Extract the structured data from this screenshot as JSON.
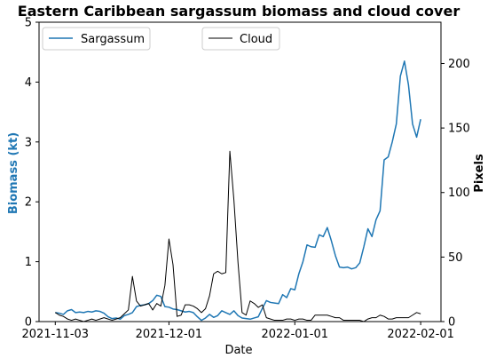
{
  "chart_data": {
    "type": "line",
    "title": "Eastern Caribbean sargassum biomass and cloud cover",
    "xlabel": "Date",
    "ylabel_left": "Biomass (kt)",
    "ylabel_right": "Pixels",
    "xlim": [
      "2021-10-30",
      "2022-02-06"
    ],
    "ylim_left": [
      0,
      5
    ],
    "ylim_right": [
      0,
      232
    ],
    "x_ticks": [
      {
        "date": "2021-11-03",
        "label": "2021-11-03"
      },
      {
        "date": "2021-12-01",
        "label": "2021-12-01"
      },
      {
        "date": "2022-01-01",
        "label": "2022-01-01"
      },
      {
        "date": "2022-02-01",
        "label": "2022-02-01"
      }
    ],
    "y_ticks_left": [
      0,
      1,
      2,
      3,
      4,
      5
    ],
    "y_ticks_right": [
      0,
      50,
      100,
      150,
      200
    ],
    "legend_placement": "top",
    "series": [
      {
        "name": "Sargassum",
        "axis": "left",
        "color": "#1f77b4",
        "points": [
          [
            "2021-11-03",
            0.15
          ],
          [
            "2021-11-04",
            0.14
          ],
          [
            "2021-11-05",
            0.12
          ],
          [
            "2021-11-06",
            0.18
          ],
          [
            "2021-11-07",
            0.2
          ],
          [
            "2021-11-08",
            0.15
          ],
          [
            "2021-11-09",
            0.16
          ],
          [
            "2021-11-10",
            0.15
          ],
          [
            "2021-11-11",
            0.17
          ],
          [
            "2021-11-12",
            0.16
          ],
          [
            "2021-11-13",
            0.18
          ],
          [
            "2021-11-14",
            0.17
          ],
          [
            "2021-11-15",
            0.14
          ],
          [
            "2021-11-16",
            0.08
          ],
          [
            "2021-11-17",
            0.05
          ],
          [
            "2021-11-18",
            0.06
          ],
          [
            "2021-11-19",
            0.04
          ],
          [
            "2021-11-20",
            0.1
          ],
          [
            "2021-11-21",
            0.12
          ],
          [
            "2021-11-22",
            0.15
          ],
          [
            "2021-11-23",
            0.25
          ],
          [
            "2021-11-24",
            0.27
          ],
          [
            "2021-11-25",
            0.28
          ],
          [
            "2021-11-26",
            0.3
          ],
          [
            "2021-11-27",
            0.35
          ],
          [
            "2021-11-28",
            0.44
          ],
          [
            "2021-11-29",
            0.42
          ],
          [
            "2021-11-30",
            0.25
          ],
          [
            "2021-12-01",
            0.24
          ],
          [
            "2021-12-02",
            0.21
          ],
          [
            "2021-12-03",
            0.2
          ],
          [
            "2021-12-04",
            0.18
          ],
          [
            "2021-12-05",
            0.16
          ],
          [
            "2021-12-06",
            0.17
          ],
          [
            "2021-12-07",
            0.15
          ],
          [
            "2021-12-08",
            0.08
          ],
          [
            "2021-12-09",
            0.02
          ],
          [
            "2021-12-10",
            0.06
          ],
          [
            "2021-12-11",
            0.12
          ],
          [
            "2021-12-12",
            0.07
          ],
          [
            "2021-12-13",
            0.1
          ],
          [
            "2021-12-14",
            0.18
          ],
          [
            "2021-12-15",
            0.15
          ],
          [
            "2021-12-16",
            0.12
          ],
          [
            "2021-12-17",
            0.18
          ],
          [
            "2021-12-18",
            0.1
          ],
          [
            "2021-12-19",
            0.06
          ],
          [
            "2021-12-20",
            0.05
          ],
          [
            "2021-12-21",
            0.04
          ],
          [
            "2021-12-22",
            0.06
          ],
          [
            "2021-12-23",
            0.08
          ],
          [
            "2021-12-24",
            0.22
          ],
          [
            "2021-12-25",
            0.35
          ],
          [
            "2021-12-26",
            0.32
          ],
          [
            "2021-12-27",
            0.31
          ],
          [
            "2021-12-28",
            0.3
          ],
          [
            "2021-12-29",
            0.45
          ],
          [
            "2021-12-30",
            0.4
          ],
          [
            "2021-12-31",
            0.55
          ],
          [
            "2022-01-01",
            0.53
          ],
          [
            "2022-01-02",
            0.8
          ],
          [
            "2022-01-03",
            1.0
          ],
          [
            "2022-01-04",
            1.28
          ],
          [
            "2022-01-05",
            1.25
          ],
          [
            "2022-01-06",
            1.24
          ],
          [
            "2022-01-07",
            1.45
          ],
          [
            "2022-01-08",
            1.42
          ],
          [
            "2022-01-09",
            1.57
          ],
          [
            "2022-01-10",
            1.35
          ],
          [
            "2022-01-11",
            1.1
          ],
          [
            "2022-01-12",
            0.91
          ],
          [
            "2022-01-13",
            0.9
          ],
          [
            "2022-01-14",
            0.91
          ],
          [
            "2022-01-15",
            0.88
          ],
          [
            "2022-01-16",
            0.9
          ],
          [
            "2022-01-17",
            0.98
          ],
          [
            "2022-01-18",
            1.25
          ],
          [
            "2022-01-19",
            1.55
          ],
          [
            "2022-01-20",
            1.42
          ],
          [
            "2022-01-21",
            1.7
          ],
          [
            "2022-01-22",
            1.85
          ],
          [
            "2022-01-23",
            2.7
          ],
          [
            "2022-01-24",
            2.75
          ],
          [
            "2022-01-25",
            3.0
          ],
          [
            "2022-01-26",
            3.3
          ],
          [
            "2022-01-27",
            4.1
          ],
          [
            "2022-01-28",
            4.35
          ],
          [
            "2022-01-29",
            3.95
          ],
          [
            "2022-01-30",
            3.3
          ],
          [
            "2022-01-31",
            3.08
          ],
          [
            "2022-02-01",
            3.38
          ]
        ]
      },
      {
        "name": "Cloud",
        "axis": "right",
        "color": "#000000",
        "points": [
          [
            "2021-11-03",
            7
          ],
          [
            "2021-11-04",
            5
          ],
          [
            "2021-11-05",
            4
          ],
          [
            "2021-11-06",
            2
          ],
          [
            "2021-11-07",
            1
          ],
          [
            "2021-11-08",
            2
          ],
          [
            "2021-11-09",
            1
          ],
          [
            "2021-11-10",
            0
          ],
          [
            "2021-11-11",
            1
          ],
          [
            "2021-11-12",
            2
          ],
          [
            "2021-11-13",
            1
          ],
          [
            "2021-11-14",
            2
          ],
          [
            "2021-11-15",
            3
          ],
          [
            "2021-11-16",
            2
          ],
          [
            "2021-11-17",
            1
          ],
          [
            "2021-11-18",
            2
          ],
          [
            "2021-11-19",
            3
          ],
          [
            "2021-11-20",
            6
          ],
          [
            "2021-11-21",
            9
          ],
          [
            "2021-11-22",
            35
          ],
          [
            "2021-11-23",
            16
          ],
          [
            "2021-11-24",
            12
          ],
          [
            "2021-11-25",
            13
          ],
          [
            "2021-11-26",
            14
          ],
          [
            "2021-11-27",
            9
          ],
          [
            "2021-11-28",
            14
          ],
          [
            "2021-11-29",
            12
          ],
          [
            "2021-11-30",
            28
          ],
          [
            "2021-12-01",
            64
          ],
          [
            "2021-12-02",
            44
          ],
          [
            "2021-12-03",
            4
          ],
          [
            "2021-12-04",
            5
          ],
          [
            "2021-12-05",
            13
          ],
          [
            "2021-12-06",
            13
          ],
          [
            "2021-12-07",
            12
          ],
          [
            "2021-12-08",
            10
          ],
          [
            "2021-12-09",
            7
          ],
          [
            "2021-12-10",
            10
          ],
          [
            "2021-12-11",
            20
          ],
          [
            "2021-12-12",
            37
          ],
          [
            "2021-12-13",
            39
          ],
          [
            "2021-12-14",
            37
          ],
          [
            "2021-12-15",
            38
          ],
          [
            "2021-12-16",
            132
          ],
          [
            "2021-12-17",
            94
          ],
          [
            "2021-12-18",
            46
          ],
          [
            "2021-12-19",
            7
          ],
          [
            "2021-12-20",
            5
          ],
          [
            "2021-12-21",
            16
          ],
          [
            "2021-12-22",
            14
          ],
          [
            "2021-12-23",
            11
          ],
          [
            "2021-12-24",
            13
          ],
          [
            "2021-12-25",
            3
          ],
          [
            "2021-12-26",
            2
          ],
          [
            "2021-12-27",
            1
          ],
          [
            "2021-12-28",
            1
          ],
          [
            "2021-12-29",
            1
          ],
          [
            "2021-12-30",
            2
          ],
          [
            "2021-12-31",
            2
          ],
          [
            "2022-01-01",
            1
          ],
          [
            "2022-01-02",
            2
          ],
          [
            "2022-01-03",
            2
          ],
          [
            "2022-01-04",
            1
          ],
          [
            "2022-01-05",
            1
          ],
          [
            "2022-01-06",
            5
          ],
          [
            "2022-01-07",
            5
          ],
          [
            "2022-01-08",
            5
          ],
          [
            "2022-01-09",
            5
          ],
          [
            "2022-01-10",
            4
          ],
          [
            "2022-01-11",
            3
          ],
          [
            "2022-01-12",
            3
          ],
          [
            "2022-01-13",
            1
          ],
          [
            "2022-01-14",
            1
          ],
          [
            "2022-01-15",
            1
          ],
          [
            "2022-01-16",
            1
          ],
          [
            "2022-01-17",
            1
          ],
          [
            "2022-01-18",
            0
          ],
          [
            "2022-01-19",
            2
          ],
          [
            "2022-01-20",
            3
          ],
          [
            "2022-01-21",
            3
          ],
          [
            "2022-01-22",
            5
          ],
          [
            "2022-01-23",
            4
          ],
          [
            "2022-01-24",
            2
          ],
          [
            "2022-01-25",
            2
          ],
          [
            "2022-01-26",
            3
          ],
          [
            "2022-01-27",
            3
          ],
          [
            "2022-01-28",
            3
          ],
          [
            "2022-01-29",
            3
          ],
          [
            "2022-01-30",
            5
          ],
          [
            "2022-01-31",
            7
          ],
          [
            "2022-02-01",
            6
          ]
        ]
      }
    ]
  }
}
